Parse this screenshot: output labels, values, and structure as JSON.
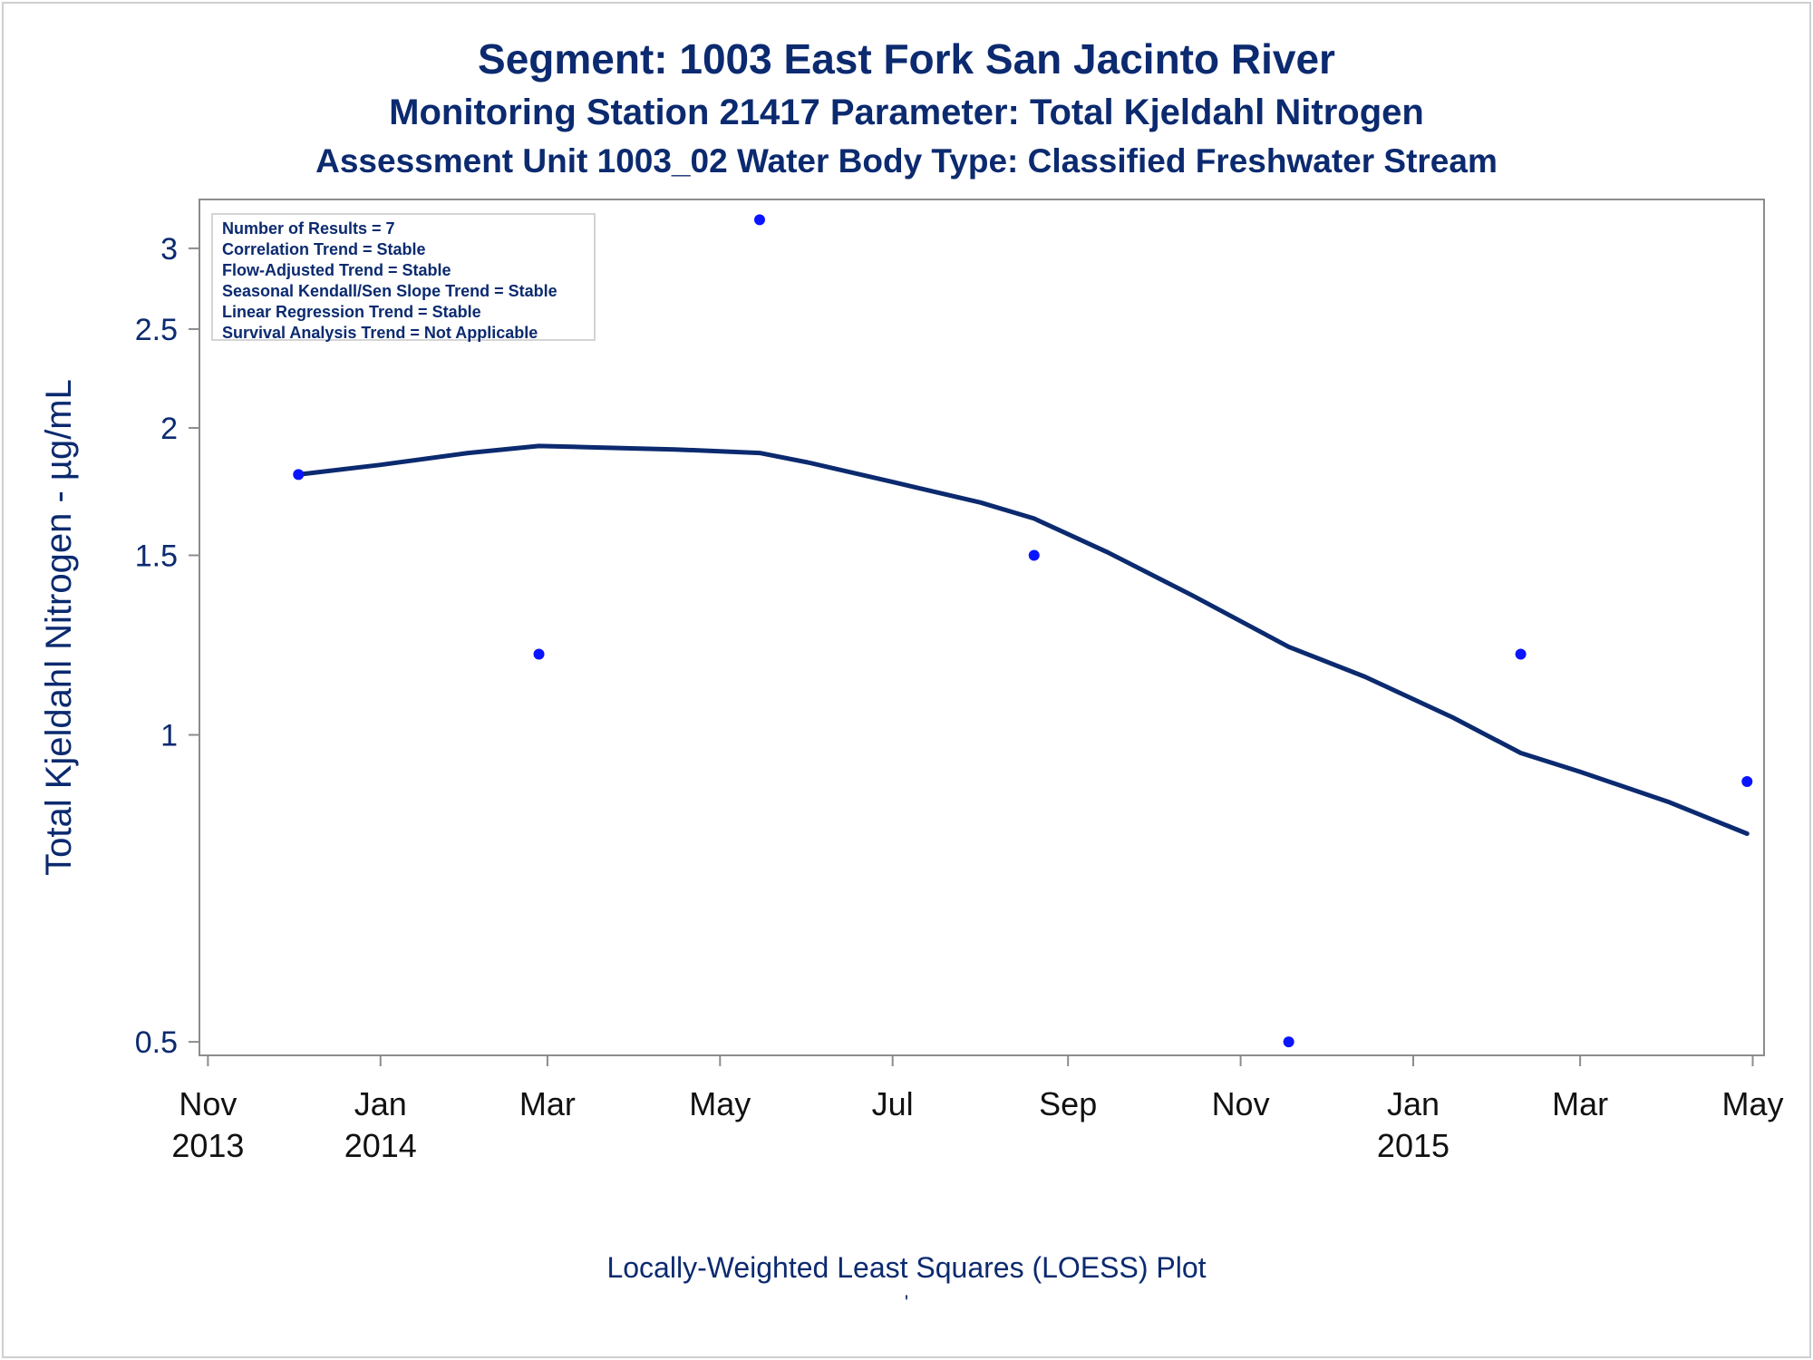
{
  "titles": {
    "line1": "Segment: 1003  East Fork San Jacinto River",
    "line2": "Monitoring Station 21417 Parameter: Total Kjeldahl Nitrogen",
    "line3": "Assessment Unit 1003_02   Water Body Type: Classified Freshwater Stream"
  },
  "stats": [
    "Number of Results = 7",
    "Correlation Trend = Stable",
    "Flow-Adjusted Trend = Stable",
    "Seasonal Kendall/Sen Slope Trend = Stable",
    "Linear Regression Trend = Stable",
    "Survival Analysis Trend = Not Applicable"
  ],
  "footnote": "Locally-Weighted Least Squares (LOESS) Plot",
  "footnote_mark": "'",
  "colors": {
    "text": "#0b2a6f",
    "points": "#0a14ff",
    "line": "#0b2a6f",
    "axis": "#8c8c8c"
  },
  "chart_data": {
    "type": "scatter",
    "ylabel": "Total Kjeldahl Nitrogen -  µg/mL",
    "xlabel": "",
    "y_scale": "log",
    "ylim": [
      0.485,
      3.35
    ],
    "xlim": [
      "2013-10-29",
      "2015-05-05"
    ],
    "grid": false,
    "x_ticks": [
      {
        "date": "2013-11-01",
        "label": [
          "Nov",
          "2013"
        ]
      },
      {
        "date": "2014-01-01",
        "label": [
          "Jan",
          "2014"
        ]
      },
      {
        "date": "2014-03-01",
        "label": [
          "Mar",
          ""
        ]
      },
      {
        "date": "2014-05-01",
        "label": [
          "May",
          ""
        ]
      },
      {
        "date": "2014-07-01",
        "label": [
          "Jul",
          ""
        ]
      },
      {
        "date": "2014-09-01",
        "label": [
          "Sep",
          ""
        ]
      },
      {
        "date": "2014-11-01",
        "label": [
          "Nov",
          ""
        ]
      },
      {
        "date": "2015-01-01",
        "label": [
          "Jan",
          "2015"
        ]
      },
      {
        "date": "2015-03-01",
        "label": [
          "Mar",
          ""
        ]
      },
      {
        "date": "2015-05-01",
        "label": [
          "May",
          ""
        ]
      }
    ],
    "y_ticks": [
      {
        "value": 0.5,
        "label": "0.5"
      },
      {
        "value": 1,
        "label": "1"
      },
      {
        "value": 1.5,
        "label": "1.5"
      },
      {
        "value": 2,
        "label": "2"
      },
      {
        "value": 2.5,
        "label": "2.5"
      },
      {
        "value": 3,
        "label": "3"
      }
    ],
    "series": [
      {
        "kind": "points",
        "points": [
          {
            "x": "2013-12-03",
            "y": 1.8
          },
          {
            "x": "2014-02-26",
            "y": 1.2
          },
          {
            "x": "2014-05-15",
            "y": 3.2
          },
          {
            "x": "2014-08-20",
            "y": 1.5
          },
          {
            "x": "2014-11-18",
            "y": 0.5
          },
          {
            "x": "2015-02-08",
            "y": 1.2
          },
          {
            "x": "2015-04-29",
            "y": 0.9
          }
        ]
      },
      {
        "kind": "loess",
        "points": [
          {
            "x": "2013-12-03",
            "y": 1.8
          },
          {
            "x": "2014-01-01",
            "y": 1.84
          },
          {
            "x": "2014-02-01",
            "y": 1.89
          },
          {
            "x": "2014-02-26",
            "y": 1.92
          },
          {
            "x": "2014-03-15",
            "y": 1.915
          },
          {
            "x": "2014-04-15",
            "y": 1.905
          },
          {
            "x": "2014-05-15",
            "y": 1.89
          },
          {
            "x": "2014-06-01",
            "y": 1.85
          },
          {
            "x": "2014-07-01",
            "y": 1.77
          },
          {
            "x": "2014-08-01",
            "y": 1.69
          },
          {
            "x": "2014-08-20",
            "y": 1.63
          },
          {
            "x": "2014-09-15",
            "y": 1.51
          },
          {
            "x": "2014-10-15",
            "y": 1.37
          },
          {
            "x": "2014-11-18",
            "y": 1.22
          },
          {
            "x": "2014-12-15",
            "y": 1.14
          },
          {
            "x": "2015-01-15",
            "y": 1.04
          },
          {
            "x": "2015-02-08",
            "y": 0.96
          },
          {
            "x": "2015-03-01",
            "y": 0.92
          },
          {
            "x": "2015-04-01",
            "y": 0.86
          },
          {
            "x": "2015-04-29",
            "y": 0.8
          }
        ]
      }
    ]
  }
}
